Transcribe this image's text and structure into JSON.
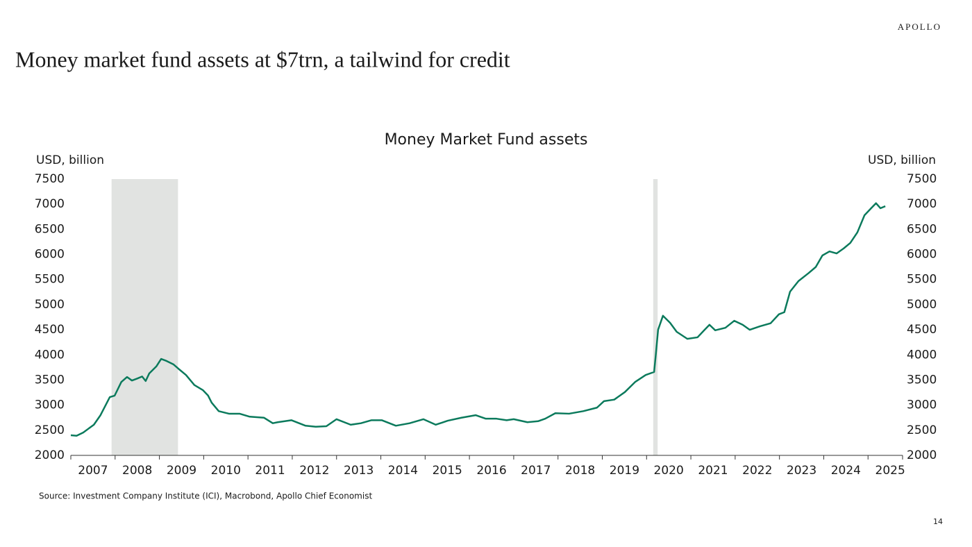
{
  "header": {
    "logo": "APOLLO",
    "title": "Money market fund assets at $7trn, a tailwind for credit"
  },
  "chart_data": {
    "type": "line",
    "title": "Money Market Fund assets",
    "y_label": "USD, billion",
    "y2_label": "USD, billion",
    "color": "#0b7a5c",
    "shade_color": "#e1e3e1",
    "recessions": [
      [
        2007.92,
        2009.42
      ],
      [
        2020.15,
        2020.25
      ]
    ],
    "x": [
      2007.0,
      2007.13,
      2007.28,
      2007.52,
      2007.67,
      2007.88,
      2007.99,
      2008.14,
      2008.27,
      2008.38,
      2008.5,
      2008.61,
      2008.69,
      2008.77,
      2008.93,
      2009.04,
      2009.16,
      2009.32,
      2009.45,
      2009.6,
      2009.79,
      2009.98,
      2010.1,
      2010.18,
      2010.34,
      2010.57,
      2010.81,
      2011.04,
      2011.36,
      2011.56,
      2011.67,
      2011.98,
      2012.3,
      2012.53,
      2012.77,
      2013.0,
      2013.32,
      2013.55,
      2013.79,
      2014.02,
      2014.34,
      2014.65,
      2014.96,
      2015.24,
      2015.51,
      2015.82,
      2016.14,
      2016.37,
      2016.61,
      2016.84,
      2017.0,
      2017.31,
      2017.55,
      2017.71,
      2017.94,
      2018.25,
      2018.57,
      2018.88,
      2019.04,
      2019.27,
      2019.51,
      2019.74,
      2019.98,
      2020.17,
      2020.21,
      2020.26,
      2020.37,
      2020.53,
      2020.68,
      2020.92,
      2021.15,
      2021.31,
      2021.42,
      2021.55,
      2021.78,
      2021.98,
      2022.17,
      2022.33,
      2022.56,
      2022.8,
      2022.99,
      2023.11,
      2023.24,
      2023.43,
      2023.66,
      2023.82,
      2023.97,
      2024.13,
      2024.29,
      2024.45,
      2024.6,
      2024.76,
      2024.92,
      2025.07,
      2025.18,
      2025.28,
      2025.39
    ],
    "values": [
      2400,
      2390,
      2455,
      2610,
      2800,
      3160,
      3190,
      3460,
      3560,
      3490,
      3530,
      3570,
      3480,
      3630,
      3770,
      3920,
      3880,
      3810,
      3710,
      3600,
      3400,
      3300,
      3190,
      3050,
      2880,
      2830,
      2830,
      2770,
      2750,
      2640,
      2660,
      2700,
      2590,
      2570,
      2580,
      2720,
      2610,
      2640,
      2700,
      2700,
      2590,
      2640,
      2720,
      2610,
      2690,
      2750,
      2800,
      2730,
      2730,
      2700,
      2720,
      2660,
      2680,
      2730,
      2840,
      2830,
      2880,
      2950,
      3080,
      3110,
      3260,
      3460,
      3600,
      3660,
      4020,
      4500,
      4780,
      4640,
      4460,
      4320,
      4350,
      4500,
      4600,
      4490,
      4540,
      4680,
      4600,
      4500,
      4570,
      4630,
      4810,
      4850,
      5260,
      5470,
      5630,
      5750,
      5980,
      6060,
      6020,
      6120,
      6230,
      6440,
      6780,
      6920,
      7020,
      6920,
      6960
    ],
    "xlim": [
      2007,
      2025.78
    ],
    "xticks": [
      2007,
      2008,
      2009,
      2010,
      2011,
      2012,
      2013,
      2014,
      2015,
      2016,
      2017,
      2018,
      2019,
      2020,
      2021,
      2022,
      2023,
      2024,
      2025
    ],
    "ylim": [
      2000,
      7500
    ],
    "yticks": [
      2000,
      2500,
      3000,
      3500,
      4000,
      4500,
      5000,
      5500,
      6000,
      6500,
      7000,
      7500
    ],
    "y2lim": [
      2000,
      7500
    ],
    "y2ticks": [
      2000,
      2500,
      3000,
      3500,
      4000,
      4500,
      5000,
      5500,
      6000,
      6500,
      7000,
      7500
    ],
    "source": "Source: Investment Company Institute (ICI), Macrobond, Apollo Chief Economist"
  },
  "footer": {
    "page_number": "14"
  }
}
